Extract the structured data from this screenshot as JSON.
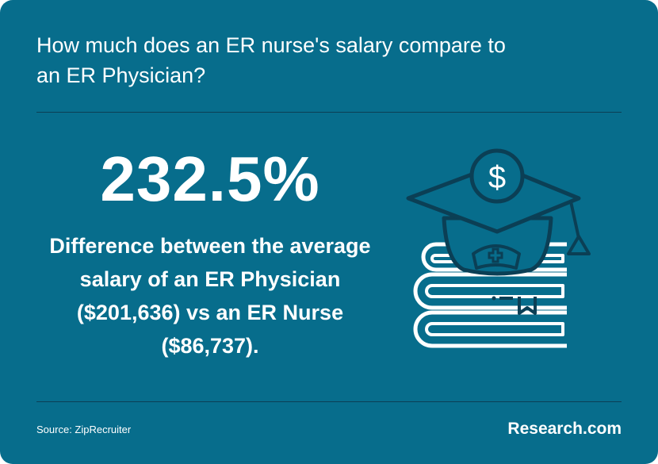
{
  "card": {
    "title": "How much does an ER nurse's salary compare to an ER Physician?",
    "stat": "232.5%",
    "description": "Difference between the average salary of an ER Physician ($201,636) vs an ER Nurse ($86,737).",
    "source": "Source: ZipRecruiter",
    "brand": "Research.com",
    "illustration_icon": "graduation-cap-books-dollar-icon"
  },
  "colors": {
    "background": "#076d8c",
    "text": "#ffffff",
    "dark_line": "#0b3f55"
  }
}
